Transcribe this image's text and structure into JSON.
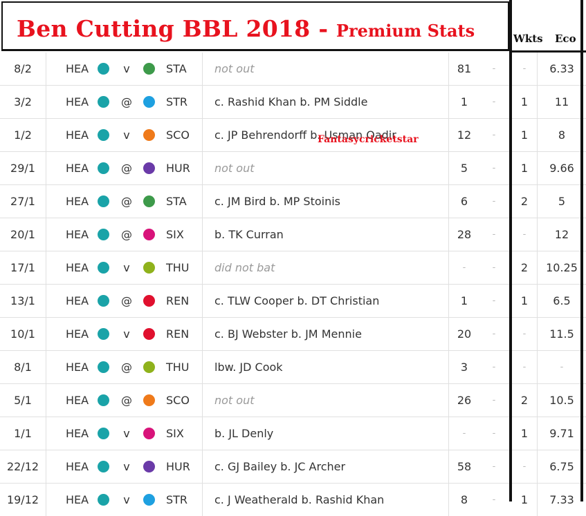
{
  "title": {
    "main": "Ben Cutting BBL 2018 -",
    "sub": "Premium Stats"
  },
  "columns": {
    "wkts": "Wkts",
    "eco": "Eco"
  },
  "watermark": "Fantasycricketstar",
  "colors": {
    "title_red": "#e8121e",
    "HEA": "#1aa3a8",
    "STA": "#3d9a4a",
    "STR": "#1ea0e0",
    "SCO": "#ef7a1a",
    "HUR": "#6a3aa8",
    "SIX": "#d8137a",
    "THU": "#8fb21c",
    "REN": "#e0102e"
  },
  "rows": [
    {
      "date": "8/2",
      "team": "HEA",
      "venue": "v",
      "opp": "STA",
      "dismissal": "not out",
      "muted": true,
      "runs": "81",
      "balls": "-",
      "wkts": "-",
      "eco": "6.33"
    },
    {
      "date": "3/2",
      "team": "HEA",
      "venue": "@",
      "opp": "STR",
      "dismissal": "c. Rashid Khan b. PM Siddle",
      "muted": false,
      "runs": "1",
      "balls": "-",
      "wkts": "1",
      "eco": "11"
    },
    {
      "date": "1/2",
      "team": "HEA",
      "venue": "v",
      "opp": "SCO",
      "dismissal": "c. JP Behrendorff b. Usman Qadir",
      "muted": false,
      "runs": "12",
      "balls": "-",
      "wkts": "1",
      "eco": "8"
    },
    {
      "date": "29/1",
      "team": "HEA",
      "venue": "@",
      "opp": "HUR",
      "dismissal": "not out",
      "muted": true,
      "runs": "5",
      "balls": "-",
      "wkts": "1",
      "eco": "9.66"
    },
    {
      "date": "27/1",
      "team": "HEA",
      "venue": "@",
      "opp": "STA",
      "dismissal": "c. JM Bird b. MP Stoinis",
      "muted": false,
      "runs": "6",
      "balls": "-",
      "wkts": "2",
      "eco": "5"
    },
    {
      "date": "20/1",
      "team": "HEA",
      "venue": "@",
      "opp": "SIX",
      "dismissal": "b. TK Curran",
      "muted": false,
      "runs": "28",
      "balls": "-",
      "wkts": "-",
      "eco": "12"
    },
    {
      "date": "17/1",
      "team": "HEA",
      "venue": "v",
      "opp": "THU",
      "dismissal": "did not bat",
      "muted": true,
      "runs": "-",
      "balls": "-",
      "wkts": "2",
      "eco": "10.25"
    },
    {
      "date": "13/1",
      "team": "HEA",
      "venue": "@",
      "opp": "REN",
      "dismissal": "c. TLW Cooper b. DT Christian",
      "muted": false,
      "runs": "1",
      "balls": "-",
      "wkts": "1",
      "eco": "6.5"
    },
    {
      "date": "10/1",
      "team": "HEA",
      "venue": "v",
      "opp": "REN",
      "dismissal": "c. BJ Webster b. JM Mennie",
      "muted": false,
      "runs": "20",
      "balls": "-",
      "wkts": "-",
      "eco": "11.5"
    },
    {
      "date": "8/1",
      "team": "HEA",
      "venue": "@",
      "opp": "THU",
      "dismissal": "lbw. JD Cook",
      "muted": false,
      "runs": "3",
      "balls": "-",
      "wkts": "-",
      "eco": "-"
    },
    {
      "date": "5/1",
      "team": "HEA",
      "venue": "@",
      "opp": "SCO",
      "dismissal": "not out",
      "muted": true,
      "runs": "26",
      "balls": "-",
      "wkts": "2",
      "eco": "10.5"
    },
    {
      "date": "1/1",
      "team": "HEA",
      "venue": "v",
      "opp": "SIX",
      "dismissal": "b. JL Denly",
      "muted": false,
      "runs": "-",
      "balls": "-",
      "wkts": "1",
      "eco": "9.71"
    },
    {
      "date": "22/12",
      "team": "HEA",
      "venue": "v",
      "opp": "HUR",
      "dismissal": "c. GJ Bailey b. JC Archer",
      "muted": false,
      "runs": "58",
      "balls": "-",
      "wkts": "-",
      "eco": "6.75"
    },
    {
      "date": "19/12",
      "team": "HEA",
      "venue": "v",
      "opp": "STR",
      "dismissal": "c. J Weatherald b. Rashid Khan",
      "muted": false,
      "runs": "8",
      "balls": "-",
      "wkts": "1",
      "eco": "7.33"
    }
  ]
}
